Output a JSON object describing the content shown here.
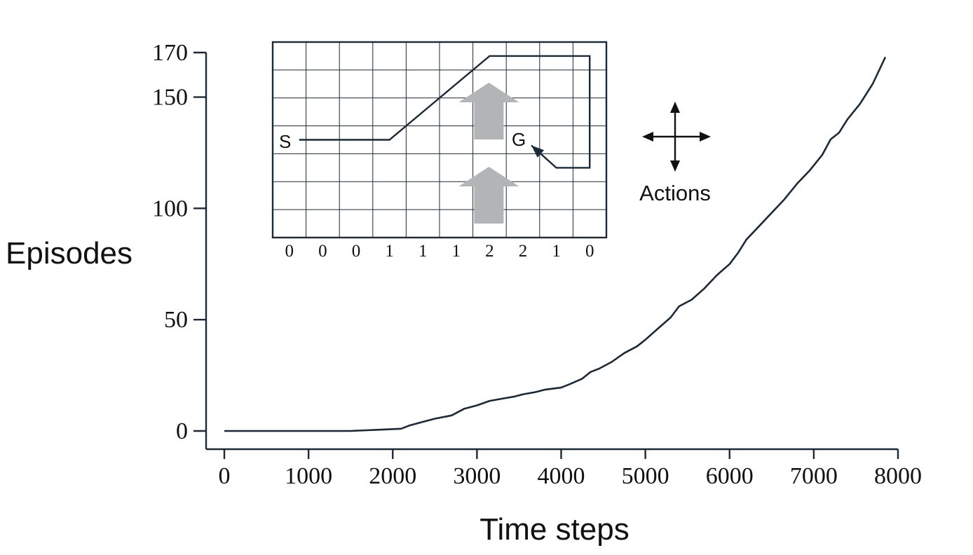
{
  "chart_data": {
    "type": "line",
    "xlabel": "Time steps",
    "ylabel": "Episodes",
    "xlim": [
      0,
      8000
    ],
    "ylim": [
      0,
      170
    ],
    "x_ticks": [
      0,
      1000,
      2000,
      3000,
      4000,
      5000,
      6000,
      7000,
      8000
    ],
    "y_ticks": [
      0,
      50,
      100,
      150,
      170
    ],
    "grid": false,
    "series": [
      {
        "color": "#1a2a38",
        "points": [
          [
            0,
            0
          ],
          [
            500,
            0
          ],
          [
            1000,
            0
          ],
          [
            1500,
            0
          ],
          [
            1550,
            0.1
          ],
          [
            1800,
            0.5
          ],
          [
            2100,
            1
          ],
          [
            2200,
            2.5
          ],
          [
            2350,
            4
          ],
          [
            2500,
            5.5
          ],
          [
            2700,
            7
          ],
          [
            2850,
            10
          ],
          [
            3000,
            11.5
          ],
          [
            3150,
            13.5
          ],
          [
            3300,
            14.5
          ],
          [
            3450,
            15.5
          ],
          [
            3550,
            16.5
          ],
          [
            3700,
            17.5
          ],
          [
            3800,
            18.5
          ],
          [
            4000,
            19.5
          ],
          [
            4100,
            21
          ],
          [
            4250,
            23.5
          ],
          [
            4350,
            26.5
          ],
          [
            4450,
            28
          ],
          [
            4600,
            31
          ],
          [
            4750,
            35
          ],
          [
            4900,
            38
          ],
          [
            5000,
            41
          ],
          [
            5150,
            46
          ],
          [
            5300,
            51
          ],
          [
            5400,
            56
          ],
          [
            5550,
            59
          ],
          [
            5700,
            64
          ],
          [
            5850,
            70
          ],
          [
            6000,
            75
          ],
          [
            6100,
            80
          ],
          [
            6200,
            86
          ],
          [
            6350,
            92
          ],
          [
            6500,
            98
          ],
          [
            6650,
            104
          ],
          [
            6800,
            111
          ],
          [
            6950,
            117
          ],
          [
            7100,
            124
          ],
          [
            7200,
            131
          ],
          [
            7300,
            134
          ],
          [
            7400,
            140
          ],
          [
            7550,
            147
          ],
          [
            7700,
            156
          ],
          [
            7850,
            168
          ]
        ]
      }
    ]
  },
  "inset": {
    "cols": 10,
    "rows": 7,
    "wind_strengths": [
      "0",
      "0",
      "0",
      "1",
      "1",
      "1",
      "2",
      "2",
      "1",
      "0"
    ],
    "start_label": "S",
    "goal_label": "G",
    "start_cell": [
      0,
      3
    ],
    "goal_cell": [
      7,
      3
    ],
    "path_cells": [
      [
        0,
        3
      ],
      [
        3,
        3
      ],
      [
        6,
        0
      ],
      [
        9,
        0
      ],
      [
        9,
        4
      ],
      [
        8,
        4
      ],
      [
        7,
        3
      ]
    ],
    "wind_arrow_color": "#b3b4b6",
    "actions_label": "Actions"
  }
}
